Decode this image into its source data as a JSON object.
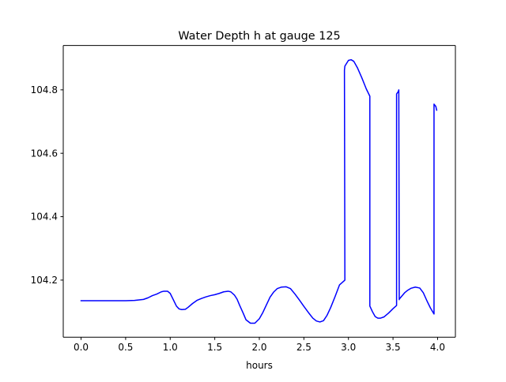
{
  "chart_data": {
    "type": "line",
    "title": "Water Depth h at gauge 125",
    "xlabel": "hours",
    "ylabel": "",
    "xlim": [
      -0.2,
      4.2
    ],
    "ylim": [
      104.02,
      104.94
    ],
    "xticks": [
      0.0,
      0.5,
      1.0,
      1.5,
      2.0,
      2.5,
      3.0,
      3.5,
      4.0
    ],
    "xtick_labels": [
      "0.0",
      "0.5",
      "1.0",
      "1.5",
      "2.0",
      "2.5",
      "3.0",
      "3.5",
      "4.0"
    ],
    "yticks": [
      104.2,
      104.4,
      104.6,
      104.8
    ],
    "ytick_labels": [
      "104.2",
      "104.4",
      "104.6",
      "104.8"
    ],
    "grid": false,
    "series": [
      {
        "color": "#0000ff",
        "x": [
          0.0,
          0.1,
          0.2,
          0.3,
          0.4,
          0.5,
          0.6,
          0.7,
          0.75,
          0.8,
          0.85,
          0.9,
          0.93,
          0.97,
          1.0,
          1.03,
          1.07,
          1.1,
          1.13,
          1.17,
          1.2,
          1.25,
          1.3,
          1.35,
          1.4,
          1.45,
          1.5,
          1.55,
          1.6,
          1.65,
          1.68,
          1.72,
          1.75,
          1.78,
          1.82,
          1.85,
          1.9,
          1.95,
          2.0,
          2.04,
          2.08,
          2.12,
          2.16,
          2.2,
          2.25,
          2.3,
          2.35,
          2.4,
          2.45,
          2.5,
          2.55,
          2.6,
          2.64,
          2.68,
          2.72,
          2.76,
          2.8,
          2.85,
          2.9,
          2.94,
          2.96,
          2.955,
          2.96,
          3.0,
          3.03,
          3.06,
          3.1,
          3.15,
          3.2,
          3.24,
          3.24,
          3.27,
          3.3,
          3.33,
          3.36,
          3.4,
          3.45,
          3.5,
          3.54,
          3.54,
          3.56,
          3.565,
          3.57,
          3.57,
          3.6,
          3.63,
          3.66,
          3.7,
          3.75,
          3.8,
          3.84,
          3.88,
          3.92,
          3.96,
          3.96,
          3.98,
          3.99
        ],
        "y": [
          104.135,
          104.135,
          104.135,
          104.135,
          104.135,
          104.135,
          104.136,
          104.139,
          104.144,
          104.151,
          104.156,
          104.163,
          104.165,
          104.165,
          104.158,
          104.141,
          104.118,
          104.109,
          104.107,
          104.108,
          104.114,
          104.126,
          104.136,
          104.142,
          104.147,
          104.151,
          104.154,
          104.158,
          104.163,
          104.165,
          104.163,
          104.153,
          104.14,
          104.12,
          104.095,
          104.075,
          104.064,
          104.064,
          104.078,
          104.098,
          104.122,
          104.146,
          104.162,
          104.173,
          104.178,
          104.179,
          104.173,
          104.156,
          104.137,
          104.117,
          104.098,
          104.08,
          104.071,
          104.068,
          104.072,
          104.089,
          104.113,
          104.148,
          104.185,
          104.195,
          104.2,
          104.862,
          104.875,
          104.893,
          104.895,
          104.89,
          104.87,
          104.838,
          104.803,
          104.78,
          104.118,
          104.1,
          104.085,
          104.08,
          104.08,
          104.084,
          104.096,
          104.11,
          104.12,
          104.787,
          104.795,
          104.8,
          104.138,
          104.14,
          104.15,
          104.16,
          104.167,
          104.174,
          104.178,
          104.175,
          104.16,
          104.135,
          104.112,
          104.093,
          104.755,
          104.748,
          104.736
        ]
      }
    ]
  }
}
